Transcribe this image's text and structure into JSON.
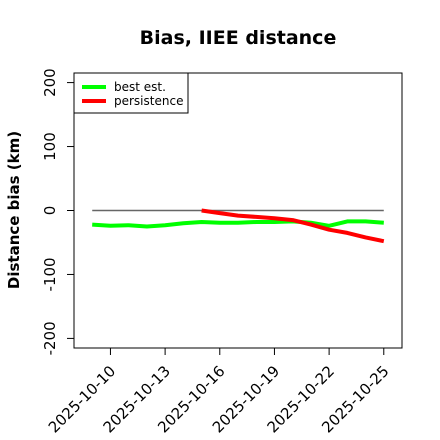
{
  "chart_data": {
    "type": "line",
    "title": "Bias, IIEE distance",
    "xlabel": "",
    "ylabel": "Distance bias (km)",
    "x_ticks": [
      "2025-10-10",
      "2025-10-13",
      "2025-10-16",
      "2025-10-19",
      "2025-10-22",
      "2025-10-25"
    ],
    "y_ticks": [
      -200,
      -100,
      0,
      100,
      200
    ],
    "xlim": [
      "2025-10-08",
      "2025-10-26"
    ],
    "ylim": [
      -215,
      215
    ],
    "zero_line": {
      "from": "2025-10-09",
      "to": "2025-10-25",
      "y": 0,
      "color": "#666666"
    },
    "legend": {
      "position": "top-left"
    },
    "series": [
      {
        "name": "best est.",
        "color": "#00ff00",
        "x": [
          "2025-10-09",
          "2025-10-10",
          "2025-10-11",
          "2025-10-12",
          "2025-10-13",
          "2025-10-14",
          "2025-10-15",
          "2025-10-16",
          "2025-10-17",
          "2025-10-18",
          "2025-10-19",
          "2025-10-20",
          "2025-10-21",
          "2025-10-22",
          "2025-10-23",
          "2025-10-24",
          "2025-10-25"
        ],
        "values": [
          -22,
          -24,
          -23,
          -25,
          -23,
          -20,
          -18,
          -19,
          -19,
          -18,
          -18,
          -17,
          -19,
          -24,
          -17,
          -17,
          -19
        ]
      },
      {
        "name": "persistence",
        "color": "#ff0000",
        "x": [
          "2025-10-15",
          "2025-10-16",
          "2025-10-17",
          "2025-10-18",
          "2025-10-19",
          "2025-10-20",
          "2025-10-21",
          "2025-10-22",
          "2025-10-23",
          "2025-10-24",
          "2025-10-25"
        ],
        "values": [
          0,
          -4,
          -8,
          -10,
          -12,
          -15,
          -22,
          -30,
          -35,
          -42,
          -48
        ]
      }
    ]
  }
}
